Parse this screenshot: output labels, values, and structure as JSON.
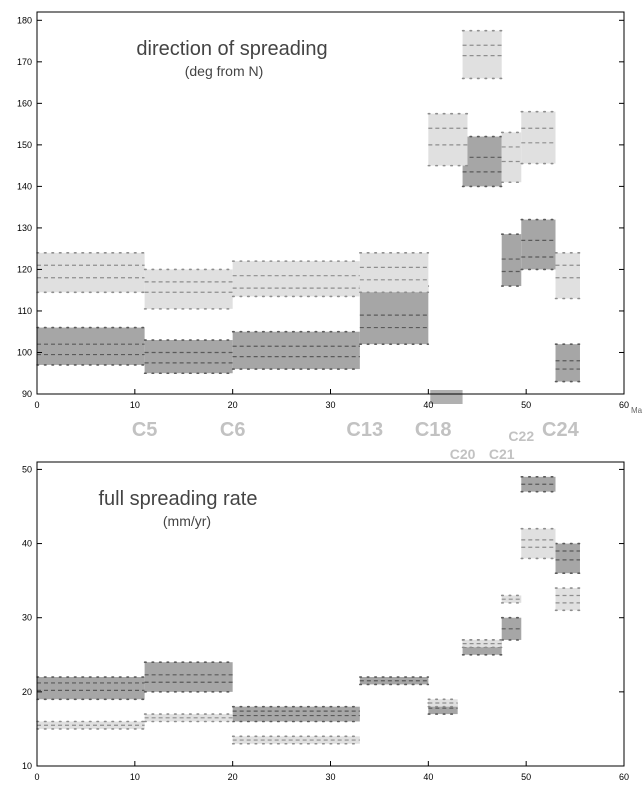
{
  "colors": {
    "dark": "#a6a6a6",
    "light": "#e0e0e0",
    "dash_dark": "#5a5a5a",
    "dash_light": "#8e8e8e",
    "chron": "#c2c2c2",
    "axis": "#000000"
  },
  "chart_data": [
    {
      "type": "range-bar",
      "title": "direction of spreading",
      "subtitle": "(deg from N)",
      "x_unit": "Ma",
      "xlim": [
        0,
        60
      ],
      "ylim": [
        90,
        182
      ],
      "x_ticks": [
        0,
        10,
        20,
        30,
        40,
        50,
        60
      ],
      "y_ticks": [
        90,
        100,
        110,
        120,
        130,
        140,
        150,
        160,
        170,
        180
      ],
      "grid": false,
      "chrons": [
        {
          "label": "C5",
          "x": 11.0,
          "row": 0
        },
        {
          "label": "C6",
          "x": 20.0,
          "row": 0
        },
        {
          "label": "C13",
          "x": 33.5,
          "row": 0
        },
        {
          "label": "C18",
          "x": 40.5,
          "row": 0
        },
        {
          "label": "C22",
          "x": 49.5,
          "row": 1
        },
        {
          "label": "C24",
          "x": 53.5,
          "row": 0
        },
        {
          "label": "C20",
          "x": 43.5,
          "row": 2
        },
        {
          "label": "C21",
          "x": 47.5,
          "row": 2
        }
      ],
      "chron_marker": {
        "x0": 40.2,
        "x1": 43.5
      },
      "series": [
        {
          "name": "",
          "shade": "dark",
          "boxes": [
            {
              "x0": 0,
              "x1": 11,
              "lo": 97,
              "hi": 106,
              "lines": [
                99.5,
                102
              ]
            },
            {
              "x0": 11,
              "x1": 20,
              "lo": 95,
              "hi": 103,
              "lines": [
                97.5,
                100
              ]
            },
            {
              "x0": 20,
              "x1": 33,
              "lo": 96,
              "hi": 105,
              "lines": [
                99,
                101.5
              ]
            },
            {
              "x0": 33,
              "x1": 40,
              "lo": 102,
              "hi": 116,
              "lines": [
                106,
                109
              ]
            },
            {
              "x0": 43.5,
              "x1": 47.5,
              "lo": 140,
              "hi": 152,
              "lines": [
                143.5,
                147
              ]
            },
            {
              "x0": 47.5,
              "x1": 49.5,
              "lo": 116,
              "hi": 128.5,
              "lines": [
                119.5,
                122.5
              ]
            },
            {
              "x0": 49.5,
              "x1": 53,
              "lo": 120,
              "hi": 132,
              "lines": [
                123,
                127
              ]
            },
            {
              "x0": 53,
              "x1": 55.5,
              "lo": 93,
              "hi": 102,
              "lines": [
                96,
                98
              ]
            }
          ]
        },
        {
          "name": "",
          "shade": "light",
          "boxes": [
            {
              "x0": 0,
              "x1": 11,
              "lo": 114.5,
              "hi": 124,
              "lines": [
                118,
                121
              ]
            },
            {
              "x0": 11,
              "x1": 20,
              "lo": 110.5,
              "hi": 120,
              "lines": [
                114.5,
                117
              ]
            },
            {
              "x0": 20,
              "x1": 33,
              "lo": 113.5,
              "hi": 122,
              "lines": [
                115.5,
                118.5
              ]
            },
            {
              "x0": 33,
              "x1": 40,
              "lo": 114.5,
              "hi": 124,
              "lines": [
                117.5,
                120.5
              ]
            },
            {
              "x0": 40,
              "x1": 44,
              "lo": 145,
              "hi": 157.5,
              "lines": [
                150,
                154
              ]
            },
            {
              "x0": 43.5,
              "x1": 47.5,
              "lo": 166,
              "hi": 177.5,
              "lines": [
                171.5,
                174
              ]
            },
            {
              "x0": 47.5,
              "x1": 49.5,
              "lo": 141,
              "hi": 153,
              "lines": [
                146,
                149.5
              ]
            },
            {
              "x0": 49.5,
              "x1": 53,
              "lo": 145.5,
              "hi": 158,
              "lines": [
                150.5,
                154
              ]
            },
            {
              "x0": 53,
              "x1": 55.5,
              "lo": 113,
              "hi": 124,
              "lines": [
                118,
                121
              ]
            }
          ]
        }
      ]
    },
    {
      "type": "range-bar",
      "title": "full spreading rate",
      "subtitle": "(mm/yr)",
      "x_unit": "",
      "xlim": [
        0,
        60
      ],
      "ylim": [
        10,
        51
      ],
      "x_ticks": [
        0,
        10,
        20,
        30,
        40,
        50,
        60
      ],
      "y_ticks": [
        10,
        20,
        30,
        40,
        50
      ],
      "grid": false,
      "series": [
        {
          "name": "",
          "shade": "dark",
          "boxes": [
            {
              "x0": 0,
              "x1": 11,
              "lo": 19,
              "hi": 22,
              "lines": [
                20.2,
                21.2
              ]
            },
            {
              "x0": 11,
              "x1": 20,
              "lo": 20,
              "hi": 24,
              "lines": [
                21.3,
                22.3
              ]
            },
            {
              "x0": 20,
              "x1": 33,
              "lo": 16,
              "hi": 18,
              "lines": [
                16.8,
                17.4
              ]
            },
            {
              "x0": 33,
              "x1": 40,
              "lo": 21,
              "hi": 22,
              "lines": [
                21.5
              ]
            },
            {
              "x0": 40,
              "x1": 43,
              "lo": 17,
              "hi": 18.5,
              "lines": [
                17.8
              ]
            },
            {
              "x0": 43.5,
              "x1": 47.5,
              "lo": 25,
              "hi": 27,
              "lines": [
                26
              ]
            },
            {
              "x0": 47.5,
              "x1": 49.5,
              "lo": 27,
              "hi": 30,
              "lines": [
                28.5
              ]
            },
            {
              "x0": 49.5,
              "x1": 53,
              "lo": 47,
              "hi": 49,
              "lines": [
                48
              ]
            },
            {
              "x0": 53,
              "x1": 55.5,
              "lo": 36,
              "hi": 40,
              "lines": [
                37.8,
                39
              ]
            }
          ]
        },
        {
          "name": "",
          "shade": "light",
          "boxes": [
            {
              "x0": 0,
              "x1": 11,
              "lo": 15,
              "hi": 16,
              "lines": [
                15.5
              ]
            },
            {
              "x0": 11,
              "x1": 20,
              "lo": 16,
              "hi": 17,
              "lines": [
                16.5
              ]
            },
            {
              "x0": 20,
              "x1": 33,
              "lo": 13,
              "hi": 14,
              "lines": [
                13.5
              ]
            },
            {
              "x0": 40,
              "x1": 43,
              "lo": 18,
              "hi": 19,
              "lines": [
                18.5
              ]
            },
            {
              "x0": 43.5,
              "x1": 47.5,
              "lo": 26,
              "hi": 27,
              "lines": [
                26.5
              ]
            },
            {
              "x0": 47.5,
              "x1": 49.5,
              "lo": 32,
              "hi": 33,
              "lines": [
                32.5
              ]
            },
            {
              "x0": 49.5,
              "x1": 53,
              "lo": 38,
              "hi": 42,
              "lines": [
                39.5,
                40.5
              ]
            },
            {
              "x0": 53,
              "x1": 55.5,
              "lo": 31,
              "hi": 34,
              "lines": [
                32,
                33
              ]
            }
          ]
        }
      ]
    }
  ]
}
